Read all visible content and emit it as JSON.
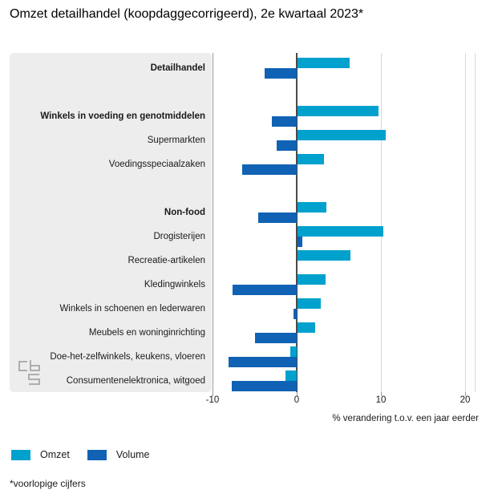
{
  "title": "Omzet detailhandel (koopdaggecorrigeerd), 2e kwartaal 2023*",
  "footnote": "*voorlopige cijfers",
  "legend": [
    {
      "label": "Omzet",
      "color": "#00a1cd"
    },
    {
      "label": "Volume",
      "color": "#0f62b4"
    }
  ],
  "logo": {
    "name": "cbs-logo",
    "color": "#aeaeae"
  },
  "chart_data": {
    "type": "bar",
    "orientation": "horizontal",
    "title": "Omzet detailhandel (koopdaggecorrigeerd), 2e kwartaal 2023*",
    "xlabel": "% verandering t.o.v. een jaar eerder",
    "xlim": [
      -10,
      21
    ],
    "xticks": [
      -10,
      0,
      10,
      20
    ],
    "grid": true,
    "legend_position": "bottom-left",
    "colors": {
      "omzet": "#00a1cd",
      "volume": "#0f62b4"
    },
    "series_names": [
      "Omzet",
      "Volume"
    ],
    "rows": [
      {
        "label": "Detailhandel",
        "bold": true,
        "omzet": 6.2,
        "volume": -3.8
      },
      {
        "spacer": true
      },
      {
        "label": "Winkels in voeding en genotmiddelen",
        "bold": true,
        "omzet": 9.6,
        "volume": -3.0
      },
      {
        "label": "Supermarkten",
        "bold": false,
        "omzet": 10.5,
        "volume": -2.4
      },
      {
        "label": "Voedingsspeciaalzaken",
        "bold": false,
        "omzet": 3.1,
        "volume": -6.5
      },
      {
        "spacer": true
      },
      {
        "label": "Non-food",
        "bold": true,
        "omzet": 3.4,
        "volume": -4.6
      },
      {
        "label": "Drogisterijen",
        "bold": false,
        "omzet": 10.2,
        "volume": 0.6
      },
      {
        "label": "Recreatie-artikelen",
        "bold": false,
        "omzet": 6.3,
        "volume": 0
      },
      {
        "label": "Kledingwinkels",
        "bold": false,
        "omzet": 3.3,
        "volume": -7.6
      },
      {
        "label": "Winkels in schoenen en lederwaren",
        "bold": false,
        "omzet": 2.8,
        "volume": -0.4
      },
      {
        "label": "Meubels en woninginrichting",
        "bold": false,
        "omzet": 2.1,
        "volume": -5.0
      },
      {
        "label": "Doe-het-zelfwinkels, keukens, vloeren",
        "bold": false,
        "omzet": -0.8,
        "volume": -8.1
      },
      {
        "label": "Consumentenelektronica, witgoed",
        "bold": false,
        "omzet": -1.3,
        "volume": -7.7
      }
    ]
  }
}
